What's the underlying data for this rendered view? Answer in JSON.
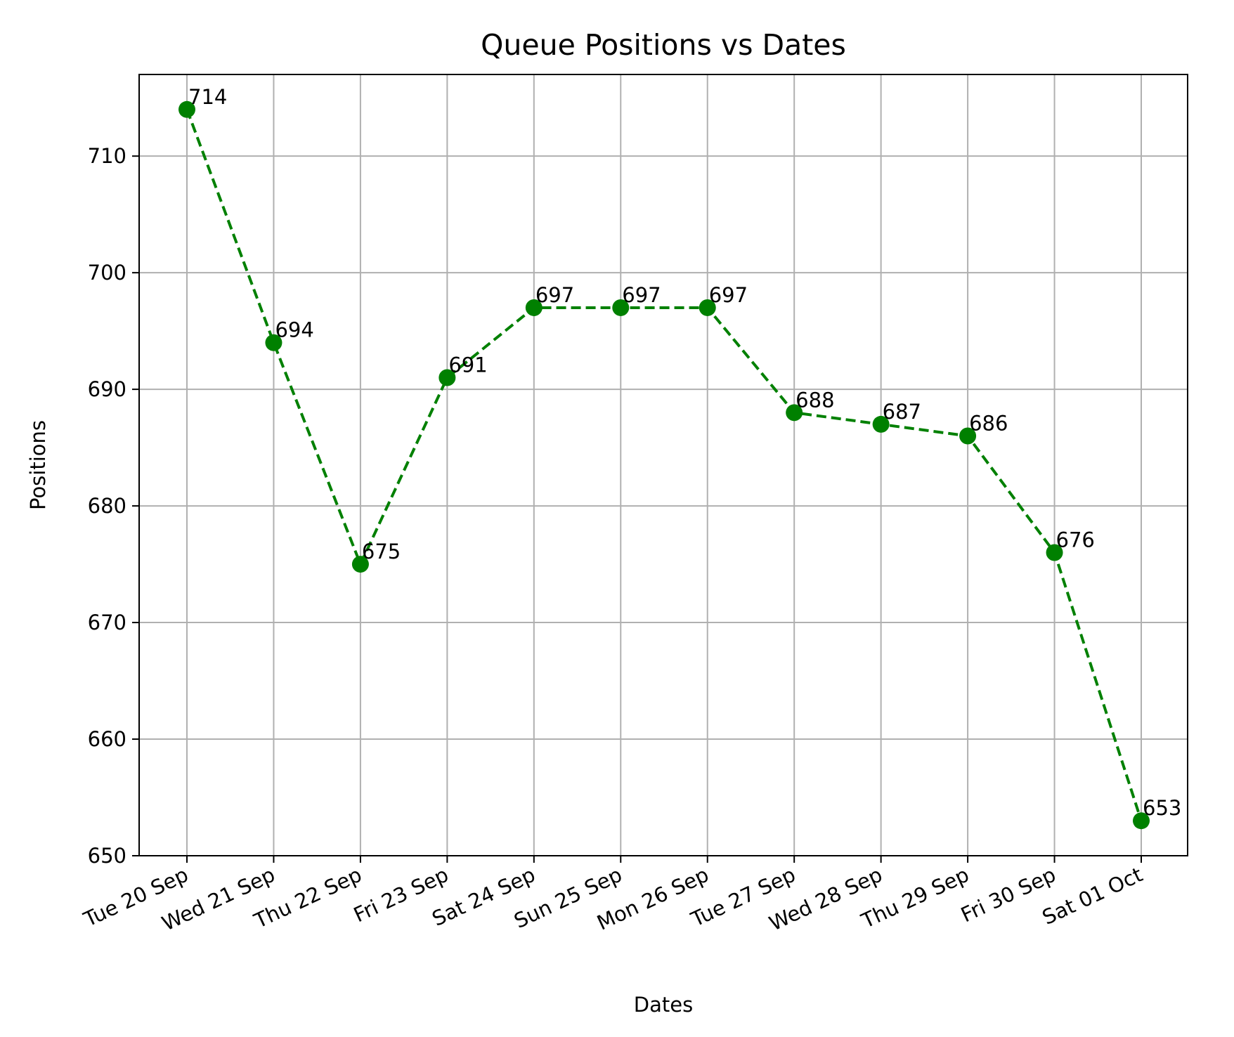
{
  "chart_data": {
    "type": "line",
    "title": "Queue Positions vs Dates",
    "xlabel": "Dates",
    "ylabel": "Positions",
    "categories": [
      "Tue 20 Sep",
      "Wed 21 Sep",
      "Thu 22 Sep",
      "Fri 23 Sep",
      "Sat 24 Sep",
      "Sun 25 Sep",
      "Mon 26 Sep",
      "Tue 27 Sep",
      "Wed 28 Sep",
      "Thu 29 Sep",
      "Fri 30 Sep",
      "Sat 01 Oct"
    ],
    "series": [
      {
        "values": [
          714,
          694,
          675,
          691,
          697,
          697,
          697,
          688,
          687,
          686,
          676,
          653
        ],
        "color": "#008000",
        "line_style": "dashed",
        "marker": "circle"
      }
    ],
    "ylim": [
      650,
      717
    ],
    "yticks": [
      650,
      660,
      670,
      680,
      690,
      700,
      710
    ],
    "grid": true,
    "x_tick_rotation": -25,
    "data_labels": true,
    "colors": {
      "grid": "#b0b0b0",
      "axes": "#000000",
      "background": "#ffffff"
    }
  }
}
